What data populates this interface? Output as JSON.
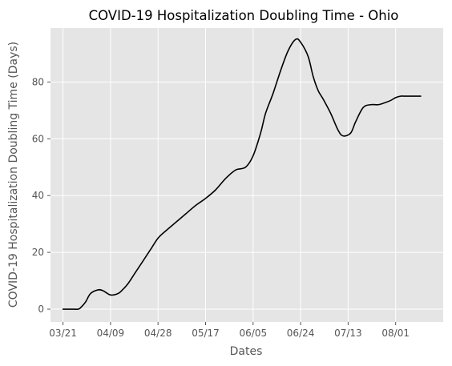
{
  "chart_data": {
    "type": "line",
    "title": "COVID-19 Hospitalization Doubling Time - Ohio",
    "xlabel": "Dates",
    "ylabel": "COVID-19 Hospitalization Doubling Time (Days)",
    "x_tick_labels": [
      "03/21",
      "04/09",
      "04/28",
      "05/17",
      "06/05",
      "06/24",
      "07/13",
      "08/01"
    ],
    "y_ticks": [
      0,
      20,
      40,
      60,
      80
    ],
    "xlim": [
      "03/16",
      "08/20"
    ],
    "ylim": [
      -4.5,
      99
    ],
    "grid": true,
    "background": "#e5e5e5",
    "line_color": "#000000",
    "series": [
      {
        "x": [
          "03/21",
          "03/24",
          "03/27",
          "03/28",
          "03/30",
          "04/01",
          "04/04",
          "04/06",
          "04/09",
          "04/12",
          "04/14",
          "04/16",
          "04/19",
          "04/22",
          "04/25",
          "04/28",
          "05/01",
          "05/05",
          "05/09",
          "05/13",
          "05/17",
          "05/21",
          "05/25",
          "05/29",
          "06/02",
          "06/05",
          "06/08",
          "06/10",
          "06/13",
          "06/16",
          "06/19",
          "06/22",
          "06/24",
          "06/27",
          "06/29",
          "07/01",
          "07/03",
          "07/06",
          "07/09",
          "07/11",
          "07/14",
          "07/16",
          "07/19",
          "07/22",
          "07/25",
          "07/27",
          "07/30",
          "08/01",
          "08/03",
          "08/05",
          "08/07",
          "08/09",
          "08/11"
        ],
        "y": [
          0,
          0,
          0,
          0.5,
          2.5,
          5.5,
          6.8,
          6.5,
          5,
          5.5,
          7,
          9,
          13,
          17,
          21,
          25,
          27.5,
          30.5,
          33.5,
          36.5,
          39,
          42,
          46,
          49,
          50,
          54,
          62,
          69,
          76,
          84,
          91,
          95,
          94,
          89,
          82,
          77,
          74,
          69,
          63,
          61,
          62,
          66,
          71,
          72,
          72,
          72.5,
          73.5,
          74.5,
          75,
          75,
          75,
          75,
          75
        ]
      }
    ]
  }
}
